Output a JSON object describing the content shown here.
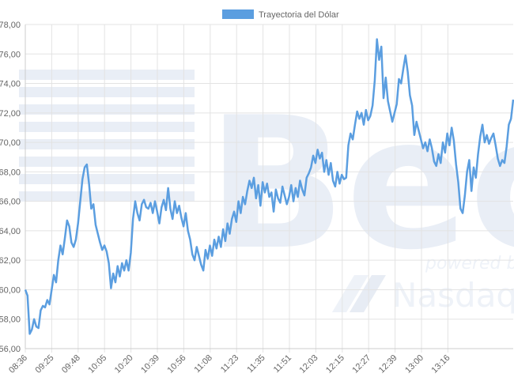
{
  "legend": {
    "label": "Trayectoria del Dólar",
    "color": "#5b9ee0"
  },
  "watermark": {
    "brand_fragment": "Bec",
    "tagline": "powered by",
    "partner": "Nasdaq",
    "color": "#e9eef6"
  },
  "chart_data": {
    "type": "line",
    "title": "",
    "xlabel": "",
    "ylabel": "",
    "ylim": [
      56,
      78
    ],
    "y_ticks": [
      "56,00",
      "58,00",
      "60,00",
      "62,00",
      "64,00",
      "66,00",
      "68,00",
      "70,00",
      "72,00",
      "74,00",
      "76,00",
      "78,00"
    ],
    "x_ticks": [
      "08:36",
      "09:25",
      "09:48",
      "10:05",
      "10:20",
      "10:39",
      "10:56",
      "11:08",
      "11:23",
      "11:35",
      "11:51",
      "12:03",
      "12:15",
      "12:27",
      "12:39",
      "13:00",
      "13:16"
    ],
    "grid": true,
    "legend_position": "top-center",
    "series": [
      {
        "name": "Trayectoria del Dólar",
        "color": "#5b9ee0",
        "values": [
          60.0,
          59.6,
          57.0,
          57.3,
          58.0,
          57.5,
          57.4,
          58.6,
          58.9,
          58.8,
          59.3,
          59.0,
          60.0,
          61.0,
          60.5,
          62.0,
          63.0,
          62.4,
          63.5,
          64.7,
          64.3,
          63.2,
          62.9,
          63.4,
          64.5,
          66.0,
          67.5,
          68.3,
          68.5,
          67.2,
          65.5,
          65.8,
          64.4,
          63.8,
          63.2,
          62.7,
          63.0,
          62.6,
          61.8,
          60.1,
          61.1,
          60.5,
          61.6,
          60.9,
          61.8,
          61.3,
          62.0,
          61.3,
          62.5,
          64.8,
          66.0,
          65.2,
          64.7,
          65.8,
          66.1,
          65.6,
          65.5,
          65.9,
          65.2,
          66.0,
          65.3,
          64.5,
          65.6,
          66.1,
          65.4,
          66.9,
          65.5,
          64.8,
          66.0,
          65.2,
          65.7,
          64.9,
          64.3,
          65.2,
          64.0,
          63.4,
          62.4,
          62.0,
          62.9,
          62.3,
          61.7,
          61.3,
          62.7,
          62.1,
          63.0,
          62.3,
          63.4,
          62.8,
          63.6,
          62.9,
          64.1,
          63.3,
          64.5,
          63.8,
          64.8,
          65.3,
          64.6,
          66.0,
          65.2,
          66.3,
          65.8,
          66.7,
          67.4,
          66.9,
          67.6,
          66.2,
          67.1,
          65.7,
          67.3,
          66.6,
          67.2,
          66.3,
          66.6,
          65.3,
          66.8,
          66.2,
          65.9,
          67.0,
          66.4,
          65.8,
          66.3,
          67.1,
          66.0,
          66.9,
          66.3,
          67.4,
          66.8,
          66.4,
          67.6,
          67.9,
          68.3,
          69.1,
          68.6,
          69.5,
          68.9,
          69.3,
          68.0,
          68.8,
          67.8,
          68.6,
          67.4,
          67.0,
          68.0,
          67.2,
          67.8,
          67.5,
          67.6,
          69.8,
          70.6,
          70.2,
          71.2,
          72.1,
          71.6,
          72.0,
          71.2,
          72.2,
          71.5,
          71.8,
          72.5,
          74.2,
          77.0,
          75.6,
          76.5,
          73.0,
          74.4,
          72.8,
          72.1,
          71.4,
          72.0,
          72.6,
          74.3,
          74.0,
          75.0,
          75.9,
          74.8,
          73.2,
          72.5,
          70.5,
          71.4,
          70.8,
          70.2,
          69.6,
          70.0,
          69.4,
          70.2,
          69.6,
          68.7,
          68.4,
          69.2,
          68.6,
          70.0,
          69.3,
          70.6,
          69.8,
          71.0,
          70.1,
          68.5,
          67.3,
          65.5,
          65.2,
          66.4,
          68.0,
          68.8,
          66.7,
          68.3,
          67.6,
          69.2,
          70.4,
          71.2,
          70.0,
          70.5,
          69.9,
          70.3,
          70.6,
          69.8,
          68.9,
          68.4,
          68.8,
          68.6,
          69.7,
          71.2,
          71.6,
          72.9
        ]
      }
    ]
  }
}
